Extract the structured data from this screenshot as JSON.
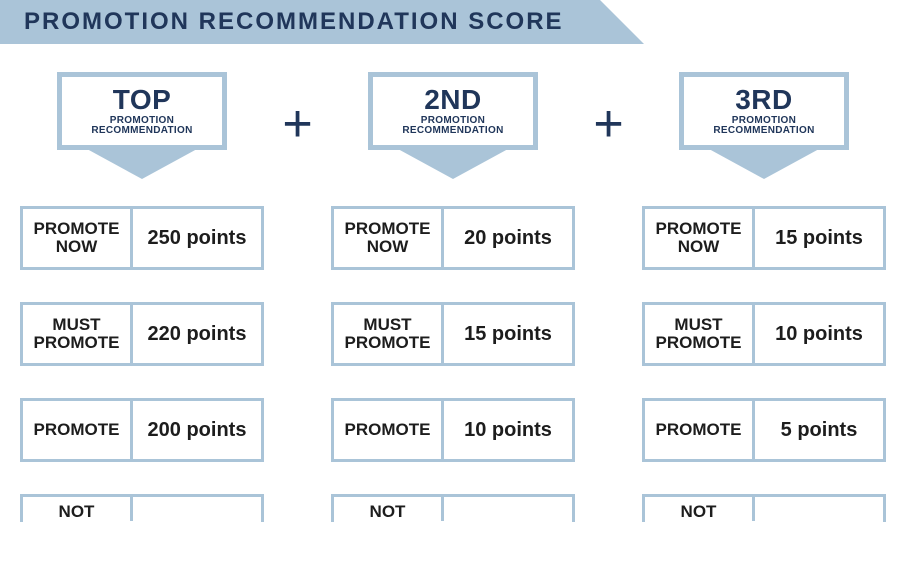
{
  "title": "PROMOTION RECOMMENDATION SCORE",
  "plus": "+",
  "columns": [
    {
      "rank": "TOP",
      "sub1": "PROMOTION",
      "sub2": "RECOMMENDATION",
      "rows": [
        {
          "label": "PROMOTE NOW",
          "points": "250 points"
        },
        {
          "label": "MUST PROMOTE",
          "points": "220 points"
        },
        {
          "label": "PROMOTE",
          "points": "200 points"
        },
        {
          "label": "NOT",
          "points": ""
        }
      ]
    },
    {
      "rank": "2ND",
      "sub1": "PROMOTION",
      "sub2": "RECOMMENDATION",
      "rows": [
        {
          "label": "PROMOTE NOW",
          "points": "20 points"
        },
        {
          "label": "MUST PROMOTE",
          "points": "15 points"
        },
        {
          "label": "PROMOTE",
          "points": "10 points"
        },
        {
          "label": "NOT",
          "points": ""
        }
      ]
    },
    {
      "rank": "3RD",
      "sub1": "PROMOTION",
      "sub2": "RECOMMENDATION",
      "rows": [
        {
          "label": "PROMOTE NOW",
          "points": "15 points"
        },
        {
          "label": "MUST PROMOTE",
          "points": "10 points"
        },
        {
          "label": "PROMOTE",
          "points": "5 points"
        },
        {
          "label": "NOT",
          "points": ""
        }
      ]
    }
  ],
  "styling": {
    "accent": "#aac4d8",
    "title_color": "#20365a",
    "text_color": "#1d1d1d",
    "background": "#ffffff",
    "title_fontsize": 24,
    "rank_fontsize": 28,
    "label_fontsize": 17,
    "points_fontsize": 20,
    "box_border_width": 3,
    "header_border_width": 5
  }
}
